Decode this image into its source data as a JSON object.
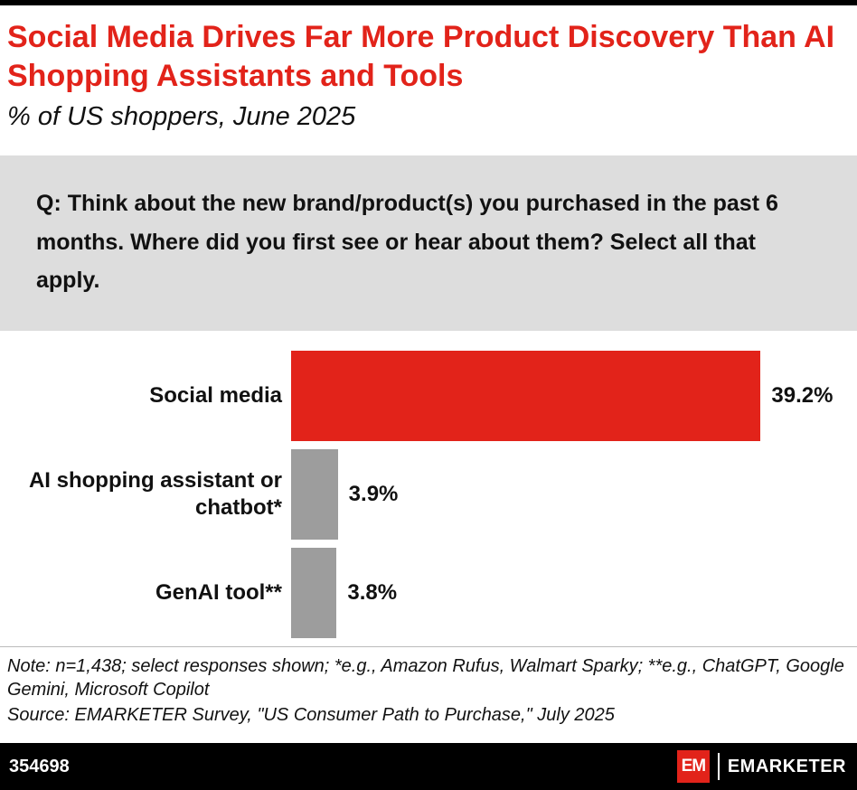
{
  "colors": {
    "accent_red": "#E2231A",
    "bar_gray": "#9D9D9D",
    "question_bg": "#DDDDDD",
    "footer_bg": "#000000"
  },
  "header": {
    "title": "Social Media Drives Far More Product Discovery Than AI Shopping Assistants and Tools",
    "subtitle": "% of US shoppers, June 2025"
  },
  "question": {
    "text": "Q: Think about the new brand/product(s) you purchased in the past 6 months. Where did you first see or hear about them? Select all that apply."
  },
  "chart_data": {
    "type": "bar",
    "orientation": "horizontal",
    "title": "Social Media Drives Far More Product Discovery Than AI Shopping Assistants and Tools",
    "subtitle": "% of US shoppers, June 2025",
    "categories": [
      "Social media",
      "AI shopping assistant or chatbot*",
      "GenAI tool**"
    ],
    "values": [
      39.2,
      3.9,
      3.8
    ],
    "value_labels": [
      "39.2%",
      "3.9%",
      "3.8%"
    ],
    "bar_colors": [
      "#E2231A",
      "#9D9D9D",
      "#9D9D9D"
    ],
    "xlim": [
      0,
      40
    ],
    "unit": "%",
    "grid": false,
    "legend": false
  },
  "footnotes": {
    "note": "Note: n=1,438; select responses shown; *e.g., Amazon Rufus, Walmart Sparky; **e.g., ChatGPT, Google Gemini, Microsoft Copilot",
    "source": "Source: EMARKETER Survey, \"US Consumer Path to Purchase,\" July 2025"
  },
  "footer": {
    "chart_id": "354698",
    "logo_mark": "EM",
    "logo_text": "EMARKETER"
  }
}
